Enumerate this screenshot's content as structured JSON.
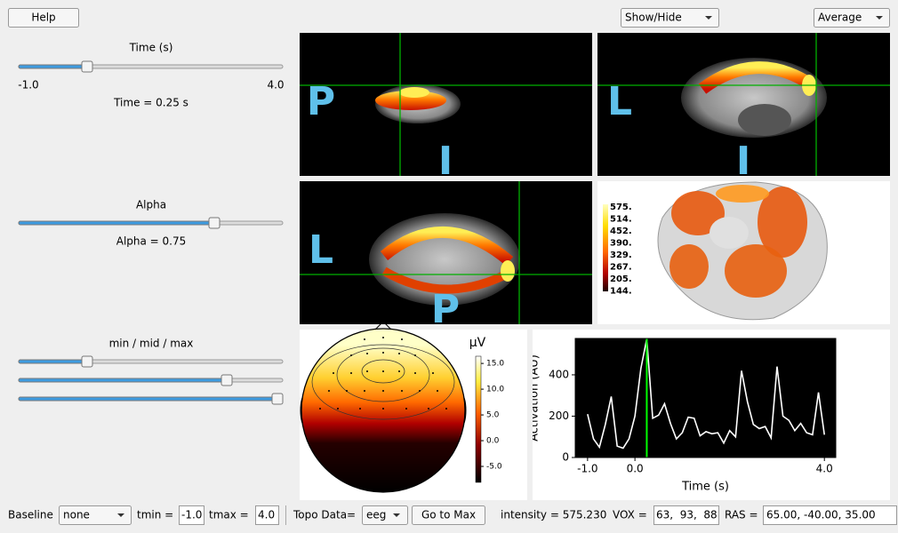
{
  "ui": {
    "help": "Help",
    "show_hide": "Show/Hide",
    "average": "Average",
    "time": {
      "label": "Time (s)",
      "min": "-1.0",
      "max": "4.0",
      "readout": "Time = 0.25 s"
    },
    "alpha": {
      "label": "Alpha",
      "readout": "Alpha = 0.75"
    },
    "clim": {
      "label": "min / mid / max"
    },
    "views": [
      {
        "labels": [
          "P",
          "I"
        ]
      },
      {
        "labels": [
          "L",
          "I"
        ]
      },
      {
        "labels": [
          "L",
          "P"
        ]
      }
    ],
    "brain_colorbar": [
      "575.",
      "514.",
      "452.",
      "390.",
      "329.",
      "267.",
      "205.",
      "144."
    ],
    "topomap": {
      "unit": "μV",
      "clim": [
        -8.1,
        16.4
      ],
      "ticks": [
        {
          "value": 15,
          "label": "15.0"
        },
        {
          "value": 10,
          "label": "10.0"
        },
        {
          "value": 5,
          "label": "5.0"
        },
        {
          "value": 0,
          "label": "0.0"
        },
        {
          "value": -5,
          "label": "-5.0"
        }
      ]
    },
    "bottom": {
      "baseline_label": "Baseline",
      "baseline": "none",
      "tmin_label": "tmin =",
      "tmin": "-1.0",
      "tmax_label": "tmax =",
      "tmax": "4.0",
      "topo_label": "Topo Data=",
      "topo": "eeg",
      "go_to_max": "Go to Max",
      "intensity": "intensity = 575.230",
      "vox_label": "VOX =",
      "vox": "63,  93,  88",
      "ras_label": "RAS =",
      "ras": "65.00, -40.00, 35.00"
    }
  },
  "chart_data": {
    "type": "line",
    "xlabel": "Time (s)",
    "ylabel": "Activation (AU)",
    "x": [
      -1,
      -0.875,
      -0.75,
      -0.625,
      -0.5,
      -0.375,
      -0.25,
      -0.125,
      0,
      0.125,
      0.25,
      0.375,
      0.5,
      0.625,
      0.75,
      0.875,
      1,
      1.125,
      1.25,
      1.375,
      1.5,
      1.625,
      1.75,
      1.875,
      2,
      2.125,
      2.25,
      2.375,
      2.5,
      2.625,
      2.75,
      2.875,
      3,
      3.125,
      3.25,
      3.375,
      3.5,
      3.625,
      3.75,
      3.875,
      4
    ],
    "values": [
      210,
      90,
      50,
      160,
      295,
      55,
      45,
      90,
      200,
      430,
      575,
      190,
      205,
      260,
      165,
      90,
      120,
      195,
      190,
      105,
      125,
      115,
      120,
      70,
      130,
      100,
      420,
      270,
      160,
      140,
      150,
      95,
      440,
      200,
      180,
      130,
      165,
      120,
      110,
      315,
      110
    ],
    "color": "#ffffff",
    "background": "#000000",
    "cursor": 0.25,
    "cursor_color": "#00ff00",
    "xlim": [
      -1.26,
      4.24
    ],
    "ylim": [
      0,
      576
    ],
    "xticks": [
      {
        "value": -1,
        "label": "-1.0"
      },
      {
        "value": 0,
        "label": "0.0"
      },
      {
        "value": 4,
        "label": "4.0"
      }
    ],
    "yticks": [
      0,
      200,
      400
    ]
  }
}
